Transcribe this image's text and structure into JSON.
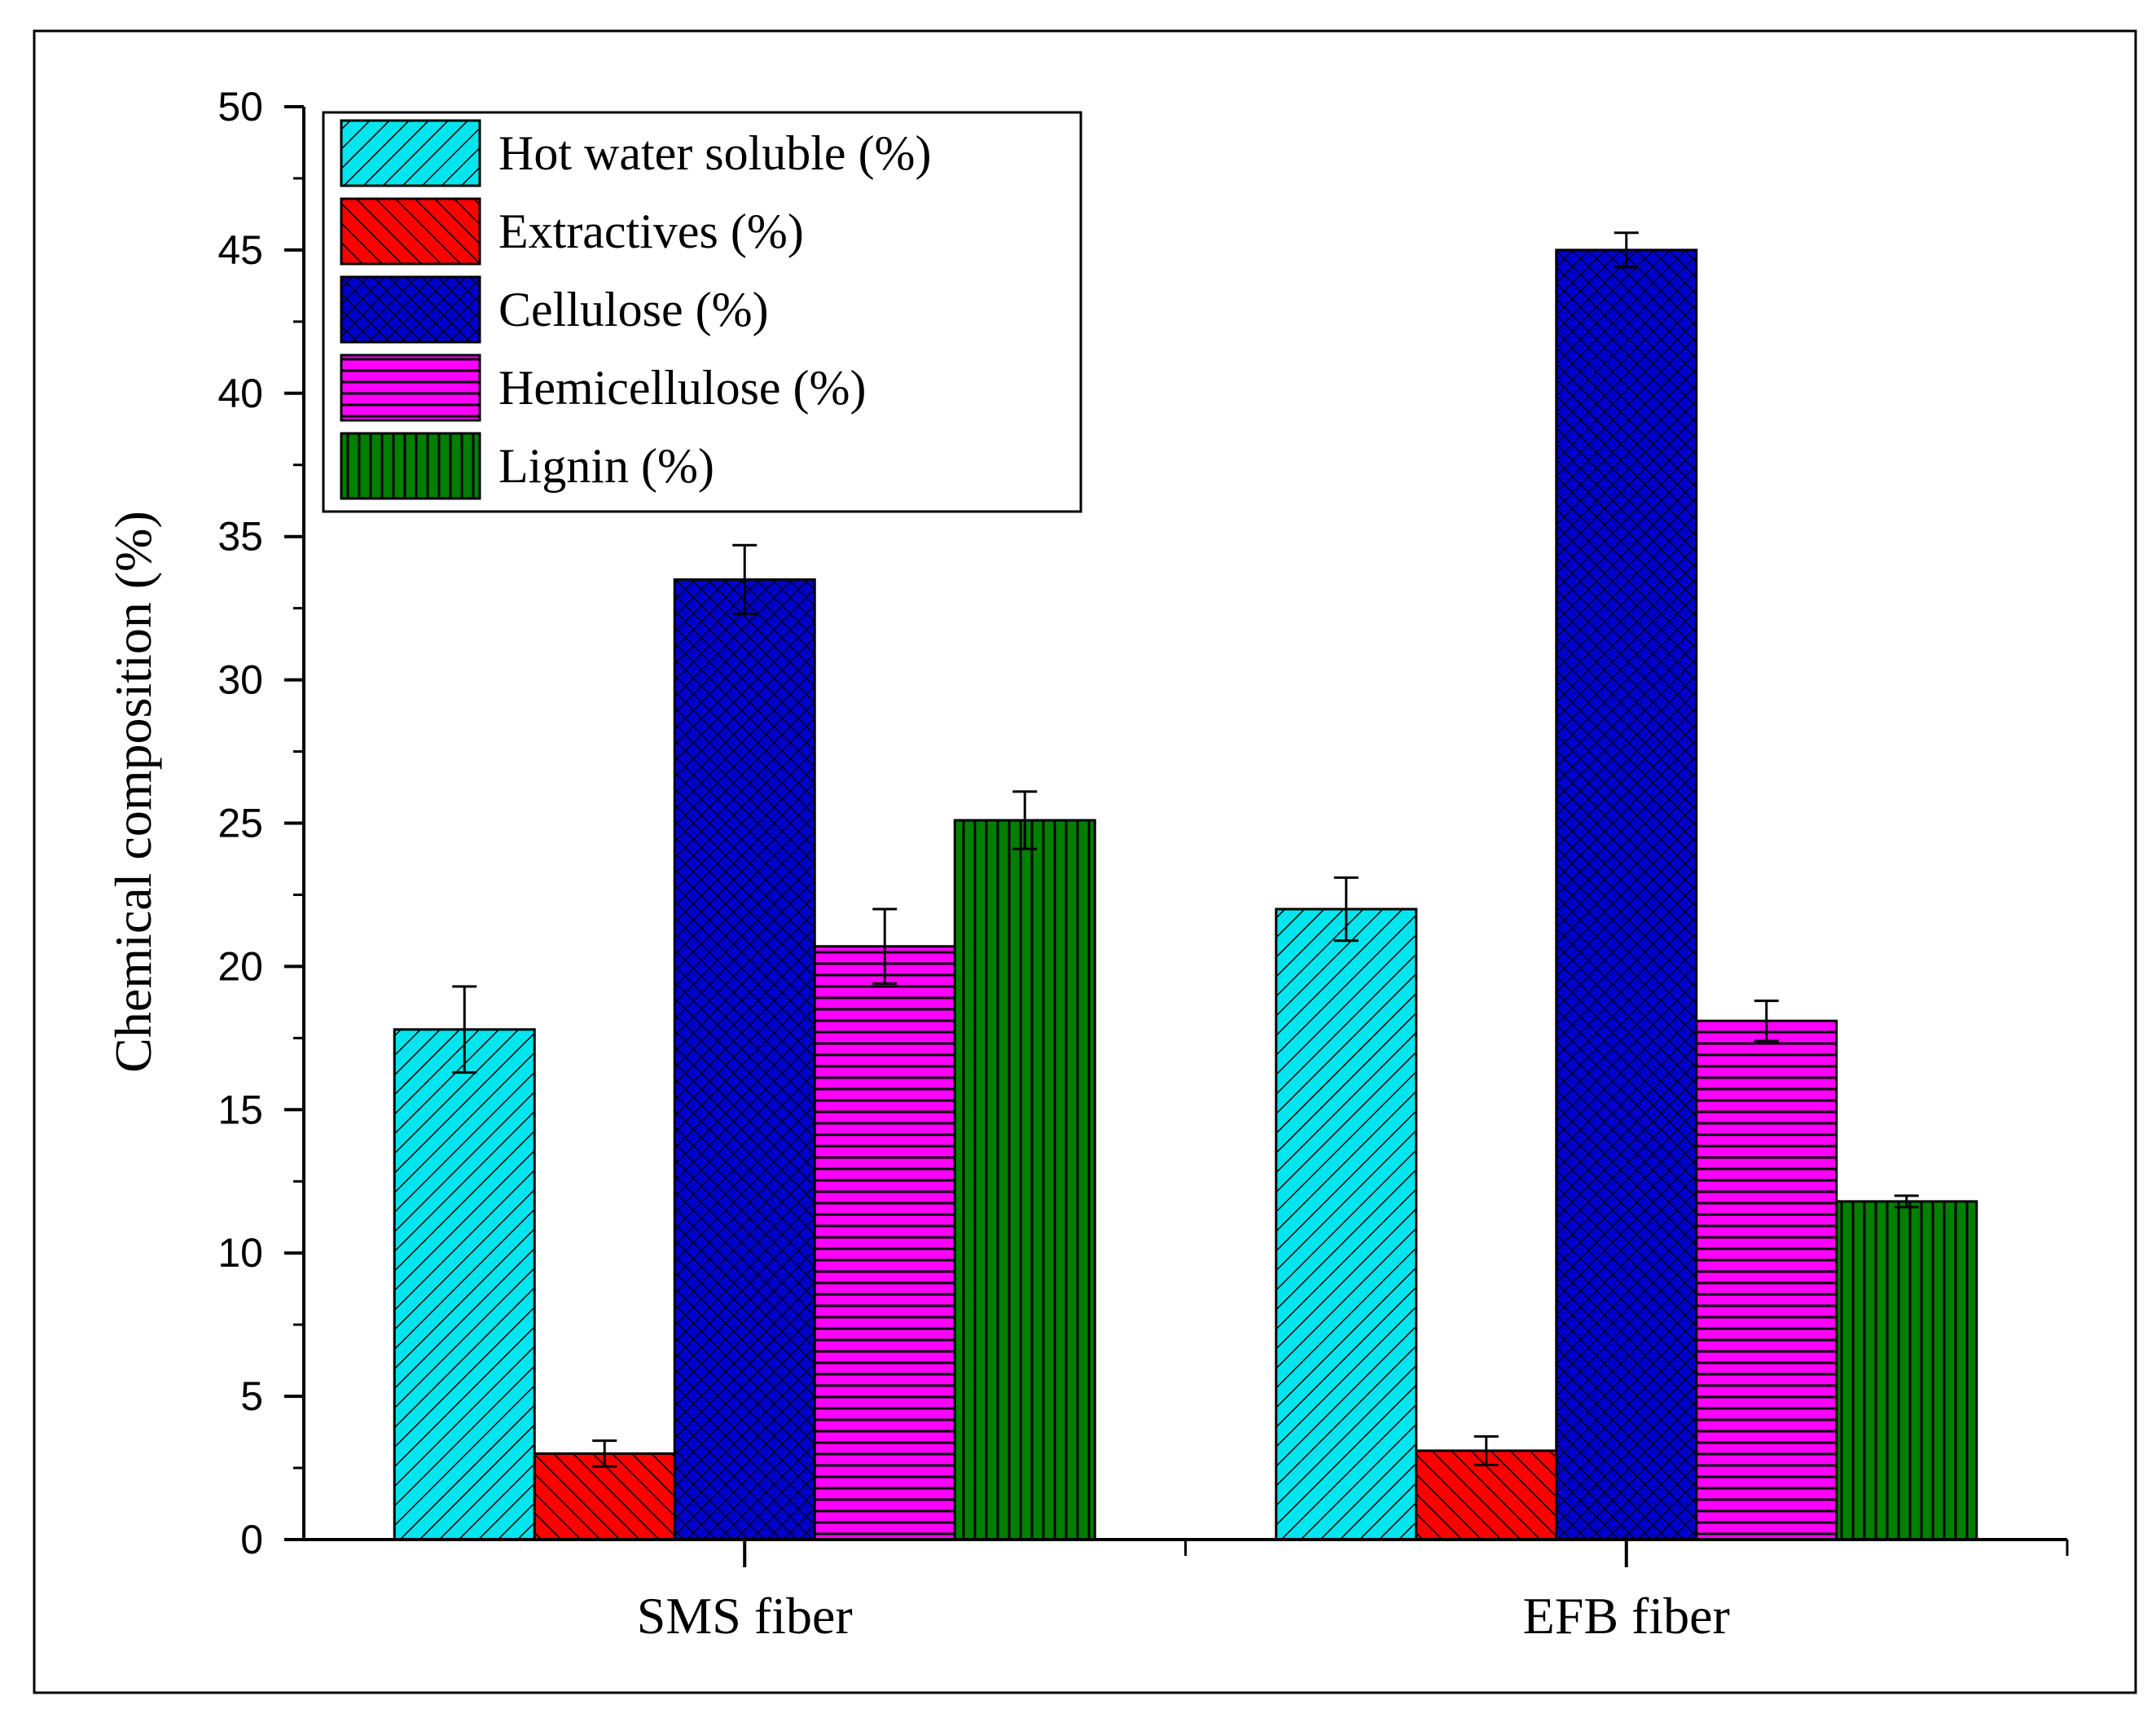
{
  "chart_data": {
    "type": "bar",
    "title": "",
    "xlabel": "",
    "ylabel": "Chemical composition (%)",
    "ylim": [
      0,
      50
    ],
    "yticks": [
      "0",
      "5",
      "10",
      "15",
      "20",
      "25",
      "30",
      "35",
      "40",
      "45",
      "50"
    ],
    "categories": [
      "SMS fiber",
      "EFB fiber"
    ],
    "legend_position": "top-left",
    "series": [
      {
        "name": "Hot water soluble (%)",
        "color": "#00e5ee",
        "pattern": "diag-fwd",
        "values": [
          17.8,
          22.0
        ],
        "errors": [
          1.5,
          1.1
        ]
      },
      {
        "name": "Extractives (%)",
        "color": "#ff0000",
        "pattern": "diag-back",
        "values": [
          3.0,
          3.1
        ],
        "errors": [
          0.45,
          0.5
        ]
      },
      {
        "name": "Cellulose (%)",
        "color": "#0000cc",
        "pattern": "crosshatch",
        "values": [
          33.5,
          45.0
        ],
        "errors": [
          1.2,
          0.6
        ]
      },
      {
        "name": "Hemicellulose (%)",
        "color": "#ff00ff",
        "pattern": "horizontal",
        "values": [
          20.7,
          18.1
        ],
        "errors": [
          1.3,
          0.7
        ]
      },
      {
        "name": "Lignin (%)",
        "color": "#007f00",
        "pattern": "vertical",
        "values": [
          25.1,
          11.8
        ],
        "errors": [
          1.0,
          0.2
        ]
      }
    ]
  }
}
